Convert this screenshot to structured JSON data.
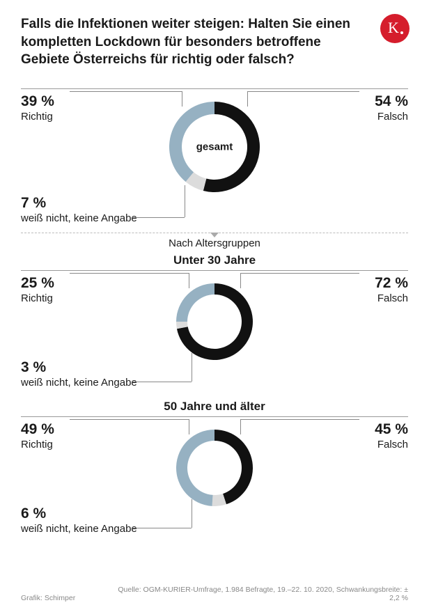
{
  "title": "Falls die Infektionen weiter steigen: Halten Sie einen kompletten Lockdown für besonders betroffene Gebiete Österreichs für richtig oder falsch?",
  "logo_letter": "K",
  "logo_bg": "#d51d2c",
  "colors": {
    "richtig": "#96b1c2",
    "falsch": "#111111",
    "unknown": "#dcdcdc",
    "ring_bg": "#ffffff",
    "text": "#1a1a1a",
    "connector": "#888888"
  },
  "labels": {
    "richtig": "Richtig",
    "falsch": "Falsch",
    "unknown": "weiß nicht, keine Angabe",
    "section_sub": "Nach Altersgruppen"
  },
  "charts": [
    {
      "key": "gesamt",
      "center_label": "gesamt",
      "title": null,
      "richtig": 39,
      "falsch": 54,
      "unknown": 7,
      "richtig_display": "39 %",
      "falsch_display": "54 %",
      "unknown_display": "7 %",
      "donut_outer_r": 65,
      "donut_thickness": 18
    },
    {
      "key": "unter30",
      "center_label": null,
      "title": "Unter 30 Jahre",
      "richtig": 25,
      "falsch": 72,
      "unknown": 3,
      "richtig_display": "25 %",
      "falsch_display": "72 %",
      "unknown_display": "3 %",
      "donut_outer_r": 55,
      "donut_thickness": 16
    },
    {
      "key": "50plus",
      "center_label": null,
      "title": "50 Jahre und älter",
      "richtig": 49,
      "falsch": 45,
      "unknown": 6,
      "richtig_display": "49 %",
      "falsch_display": "45 %",
      "unknown_display": "6 %",
      "donut_outer_r": 55,
      "donut_thickness": 16
    }
  ],
  "footer": {
    "credit": "Grafik: Schimper",
    "source": "Quelle: OGM-KURIER-Umfrage, 1.984 Befragte, 19.–22. 10. 2020, Schwankungsbreite: ± 2,2 %"
  }
}
